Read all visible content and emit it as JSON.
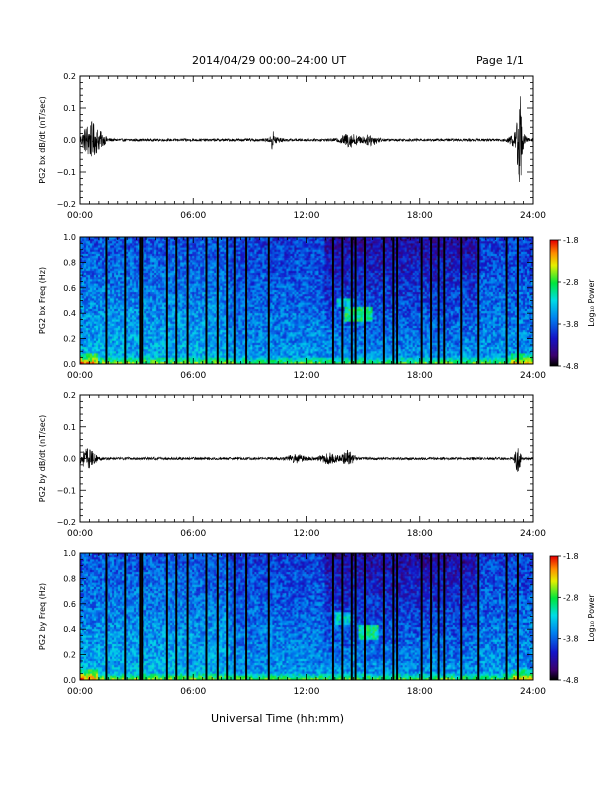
{
  "header": {
    "title": "2014/04/29  00:00–24:00 UT",
    "page": "Page 1/1"
  },
  "x_axis_title": "Universal Time (hh:mm)",
  "colors": {
    "trace": "#000000",
    "spectrogram_low": "#1a0b5c",
    "spectrogram_mid": "#1aa8e8",
    "spectrogram_high": "#d40000"
  },
  "chart_data": [
    {
      "type": "line",
      "ylabel": "PG2 bx dB/dt (nT/sec)",
      "x_ticks": [
        "00:00",
        "06:00",
        "12:00",
        "18:00",
        "24:00"
      ],
      "xlim_hours": [
        0,
        24
      ],
      "ylim": [
        -0.2,
        0.2
      ],
      "y_ticks": [
        "0.2",
        "0.1",
        "0.0",
        "−0.1",
        "−0.2"
      ],
      "y_tick_values": [
        0.2,
        0.1,
        0.0,
        -0.1,
        -0.2
      ],
      "baseline": 0.0,
      "noise_amplitude": 0.004,
      "bursts": [
        {
          "t": 0.5,
          "amp": 0.05,
          "width": 0.4
        },
        {
          "t": 1.0,
          "amp": 0.02,
          "width": 0.4
        },
        {
          "t": 10.3,
          "amp": 0.012,
          "width": 0.3
        },
        {
          "t": 10.2,
          "amp": 0.03,
          "width": 0.05
        },
        {
          "t": 14.3,
          "amp": 0.02,
          "width": 0.5
        },
        {
          "t": 15.4,
          "amp": 0.015,
          "width": 0.4
        },
        {
          "t": 23.3,
          "amp": 0.13,
          "width": 0.12
        },
        {
          "t": 23.2,
          "amp": 0.03,
          "width": 0.4
        }
      ]
    },
    {
      "type": "heatmap",
      "ylabel": "PG2 bx Freq (Hz)",
      "x_ticks": [
        "00:00",
        "06:00",
        "12:00",
        "18:00",
        "24:00"
      ],
      "xlim_hours": [
        0,
        24
      ],
      "ylim": [
        0,
        1.0
      ],
      "y_ticks": [
        "1.0",
        "0.8",
        "0.6",
        "0.4",
        "0.2",
        "0.0"
      ],
      "y_tick_values": [
        1.0,
        0.8,
        0.6,
        0.4,
        0.2,
        0.0
      ],
      "colorbar": {
        "label": "Log₁₀ Power",
        "range": [
          -4.8,
          -1.8
        ],
        "ticks": [
          "-1.8",
          "-2.8",
          "-3.8",
          "-4.8"
        ],
        "tick_values": [
          -1.8,
          -2.8,
          -3.8,
          -4.8
        ]
      },
      "gap_hours": [
        1.4,
        2.4,
        3.2,
        3.3,
        4.6,
        5.1,
        5.7,
        6.7,
        7.3,
        7.8,
        8.2,
        8.8,
        10.0,
        13.4,
        13.9,
        14.4,
        14.6,
        15.1,
        16.1,
        16.6,
        16.8,
        18.1,
        18.6,
        19.0,
        19.3,
        20.2,
        21.1,
        22.6,
        23.2
      ],
      "features": [
        {
          "t0": 14.0,
          "t1": 15.5,
          "f0": 0.33,
          "f1": 0.45,
          "level": -3.0
        },
        {
          "t0": 13.6,
          "t1": 14.3,
          "f0": 0.45,
          "f1": 0.52,
          "level": -3.3
        }
      ]
    },
    {
      "type": "line",
      "ylabel": "PG2 by dB/dt (nT/sec)",
      "x_ticks": [
        "00:00",
        "06:00",
        "12:00",
        "18:00",
        "24:00"
      ],
      "xlim_hours": [
        0,
        24
      ],
      "ylim": [
        -0.2,
        0.2
      ],
      "y_ticks": [
        "0.2",
        "0.1",
        "0.0",
        "−0.1",
        "−0.2"
      ],
      "y_tick_values": [
        0.2,
        0.1,
        0.0,
        -0.1,
        -0.2
      ],
      "baseline": 0.0,
      "noise_amplitude": 0.004,
      "bursts": [
        {
          "t": 0.4,
          "amp": 0.03,
          "width": 0.4
        },
        {
          "t": 11.5,
          "amp": 0.012,
          "width": 0.5
        },
        {
          "t": 14.2,
          "amp": 0.025,
          "width": 0.3
        },
        {
          "t": 13.2,
          "amp": 0.015,
          "width": 0.5
        },
        {
          "t": 23.2,
          "amp": 0.045,
          "width": 0.15
        }
      ]
    },
    {
      "type": "heatmap",
      "ylabel": "PG2 by Freq (Hz)",
      "x_ticks": [
        "00:00",
        "06:00",
        "12:00",
        "18:00",
        "24:00"
      ],
      "xlim_hours": [
        0,
        24
      ],
      "ylim": [
        0,
        1.0
      ],
      "y_ticks": [
        "1.0",
        "0.8",
        "0.6",
        "0.4",
        "0.2",
        "0.0"
      ],
      "y_tick_values": [
        1.0,
        0.8,
        0.6,
        0.4,
        0.2,
        0.0
      ],
      "colorbar": {
        "label": "Log₁₀ Power",
        "range": [
          -4.8,
          -1.8
        ],
        "ticks": [
          "-1.8",
          "-2.8",
          "-3.8",
          "-4.8"
        ],
        "tick_values": [
          -1.8,
          -2.8,
          -3.8,
          -4.8
        ]
      },
      "gap_hours": [
        1.4,
        2.4,
        3.2,
        3.3,
        4.6,
        5.1,
        5.7,
        6.7,
        7.3,
        7.8,
        8.2,
        8.8,
        10.0,
        13.4,
        13.9,
        14.4,
        14.6,
        15.1,
        16.1,
        16.6,
        16.8,
        18.1,
        18.6,
        19.0,
        19.3,
        20.2,
        21.1,
        22.6,
        23.2
      ],
      "features": [
        {
          "t0": 14.8,
          "t1": 15.8,
          "f0": 0.32,
          "f1": 0.44,
          "level": -3.0
        },
        {
          "t0": 13.5,
          "t1": 14.3,
          "f0": 0.44,
          "f1": 0.54,
          "level": -3.3
        }
      ]
    }
  ]
}
